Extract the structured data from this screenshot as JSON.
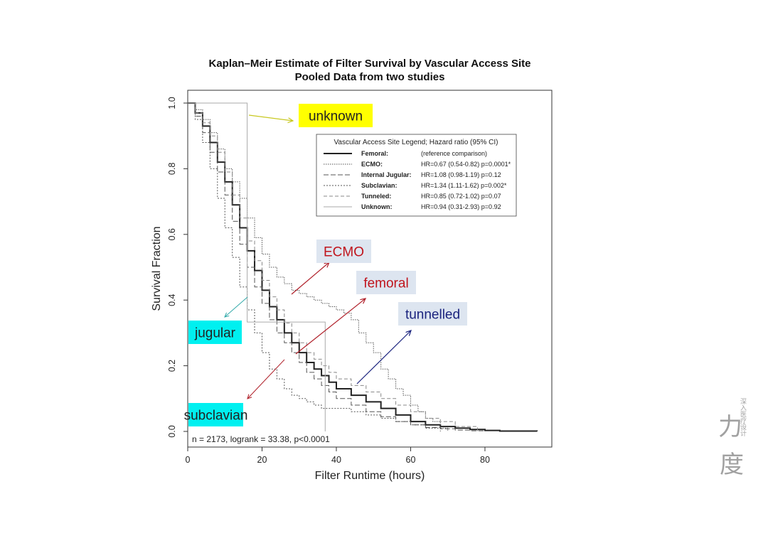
{
  "chart_data": {
    "type": "line",
    "title": "Kaplan–Meir Estimate of Filter Survival by Vascular Access Site",
    "subtitle": "Pooled Data from two studies",
    "xlabel": "Filter Runtime (hours)",
    "ylabel": "Survival Fraction",
    "xlim": [
      0,
      98
    ],
    "ylim": [
      0,
      1.0
    ],
    "xticks": [
      "0",
      "20",
      "40",
      "60",
      "80"
    ],
    "yticks": [
      "0.0",
      "0.2",
      "0.4",
      "0.6",
      "0.8",
      "1.0"
    ],
    "grid": false,
    "stats_text": "n = 2173, logrank = 33.38, p<0.0001",
    "legend": {
      "title": "Vascular Access Site Legend; Hazard ratio (95% CI)",
      "placement": "top-right",
      "entries": [
        {
          "name": "Femoral:",
          "hr": "(reference comparison)"
        },
        {
          "name": "ECMO:",
          "hr": "HR=0.67 (0.54-0.82) p=0.0001*"
        },
        {
          "name": "Internal Jugular:",
          "hr": "HR=1.08 (0.98-1.19) p=0.12"
        },
        {
          "name": "Subclavian:",
          "hr": "HR=1.34 (1.11-1.62) p=0.002*"
        },
        {
          "name": "Tunneled:",
          "hr": "HR=0.85 (0.72-1.02) p=0.07"
        },
        {
          "name": "Unknown:",
          "hr": "HR=0.94 (0.31-2.93) p=0.92"
        }
      ]
    },
    "series": [
      {
        "name": "Femoral",
        "x": [
          0,
          2,
          4,
          6,
          8,
          10,
          12,
          14,
          16,
          18,
          20,
          22,
          24,
          26,
          28,
          30,
          32,
          34,
          36,
          38,
          40,
          44,
          48,
          52,
          56,
          60,
          64,
          68,
          72,
          76,
          80,
          84,
          94
        ],
        "y": [
          1.0,
          0.97,
          0.93,
          0.88,
          0.82,
          0.76,
          0.69,
          0.62,
          0.55,
          0.49,
          0.43,
          0.38,
          0.34,
          0.3,
          0.27,
          0.24,
          0.21,
          0.19,
          0.17,
          0.15,
          0.13,
          0.11,
          0.09,
          0.07,
          0.05,
          0.03,
          0.02,
          0.015,
          0.01,
          0.006,
          0.003,
          0.001,
          0.0
        ]
      },
      {
        "name": "ECMO",
        "x": [
          0,
          2,
          4,
          6,
          8,
          10,
          12,
          14,
          16,
          18,
          20,
          22,
          24,
          26,
          28,
          30,
          32,
          34,
          36,
          38,
          40,
          42,
          44,
          46,
          48,
          50,
          52,
          54,
          56,
          58,
          60,
          62,
          64,
          66,
          68,
          70
        ],
        "y": [
          1.0,
          0.98,
          0.95,
          0.91,
          0.86,
          0.8,
          0.76,
          0.71,
          0.65,
          0.59,
          0.54,
          0.5,
          0.47,
          0.45,
          0.43,
          0.42,
          0.41,
          0.4,
          0.39,
          0.38,
          0.37,
          0.36,
          0.34,
          0.3,
          0.27,
          0.24,
          0.19,
          0.16,
          0.13,
          0.11,
          0.08,
          0.06,
          0.04,
          0.03,
          0.01,
          0.0
        ]
      },
      {
        "name": "Internal Jugular",
        "x": [
          0,
          2,
          4,
          6,
          8,
          10,
          12,
          14,
          16,
          18,
          20,
          22,
          24,
          26,
          28,
          30,
          32,
          34,
          36,
          38,
          40,
          44,
          48,
          52,
          56,
          60,
          64,
          68,
          72,
          76,
          80
        ],
        "y": [
          1.0,
          0.96,
          0.91,
          0.85,
          0.79,
          0.72,
          0.64,
          0.57,
          0.5,
          0.44,
          0.39,
          0.34,
          0.3,
          0.27,
          0.24,
          0.21,
          0.18,
          0.16,
          0.14,
          0.12,
          0.1,
          0.08,
          0.06,
          0.045,
          0.03,
          0.02,
          0.012,
          0.008,
          0.004,
          0.002,
          0.0
        ]
      },
      {
        "name": "Subclavian",
        "x": [
          0,
          2,
          4,
          6,
          8,
          10,
          12,
          14,
          16,
          18,
          20,
          22,
          24,
          26,
          28,
          30,
          32,
          34,
          36,
          40,
          44,
          48,
          52,
          56,
          60,
          64,
          68
        ],
        "y": [
          1.0,
          0.95,
          0.88,
          0.8,
          0.71,
          0.62,
          0.53,
          0.44,
          0.37,
          0.3,
          0.24,
          0.19,
          0.16,
          0.13,
          0.11,
          0.1,
          0.09,
          0.08,
          0.07,
          0.07,
          0.06,
          0.05,
          0.04,
          0.03,
          0.02,
          0.01,
          0.0
        ]
      },
      {
        "name": "Tunneled",
        "x": [
          0,
          2,
          4,
          6,
          8,
          10,
          12,
          14,
          16,
          18,
          20,
          22,
          24,
          26,
          28,
          30,
          32,
          34,
          36,
          38,
          40,
          44,
          48,
          52,
          56,
          60,
          64,
          68,
          72,
          78
        ],
        "y": [
          1.0,
          0.97,
          0.94,
          0.9,
          0.85,
          0.79,
          0.72,
          0.65,
          0.58,
          0.52,
          0.46,
          0.41,
          0.37,
          0.33,
          0.3,
          0.27,
          0.24,
          0.22,
          0.2,
          0.18,
          0.16,
          0.14,
          0.12,
          0.1,
          0.08,
          0.06,
          0.04,
          0.03,
          0.015,
          0.0
        ]
      },
      {
        "name": "Unknown",
        "x": [
          0,
          16,
          16,
          37,
          37
        ],
        "y": [
          1.0,
          1.0,
          0.333,
          0.333,
          0.0
        ]
      }
    ],
    "annotations": [
      {
        "label": "unknown",
        "color": "#222222",
        "background": "#ffff00"
      },
      {
        "label": "ECMO",
        "color": "#c0141c",
        "background": "#dde5f0"
      },
      {
        "label": "femoral",
        "color": "#c0141c",
        "background": "#dde5f0"
      },
      {
        "label": "tunnelled",
        "color": "#1a237e",
        "background": "#dde5f0"
      },
      {
        "label": "jugular",
        "color": "#222222",
        "background": "#00f0f0"
      },
      {
        "label": "subclavian",
        "color": "#222222",
        "background": "#00f0f0"
      }
    ]
  },
  "watermark": {
    "text": "力度",
    "subtext": "深入医疗设计"
  }
}
